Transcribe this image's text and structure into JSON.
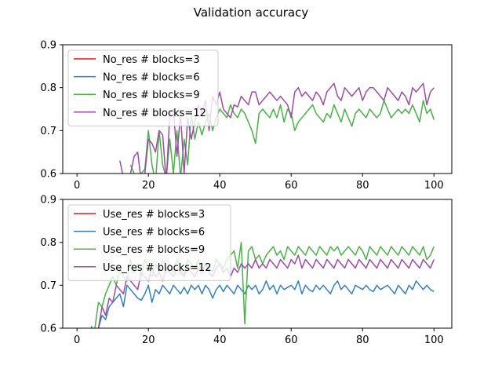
{
  "figure": {
    "title": "Validation accuracy"
  },
  "colors": {
    "red": "#e41a1c",
    "blue": "#377eb8",
    "green": "#4daf4a",
    "purple": "#984ea3"
  },
  "chart_data": [
    {
      "type": "line",
      "title": "",
      "xlabel": "",
      "ylabel": "",
      "xlim": [
        -4,
        105
      ],
      "ylim": [
        0.6,
        0.9
      ],
      "xticks": [
        0,
        20,
        40,
        60,
        80,
        100
      ],
      "yticks": [
        0.6,
        0.7,
        0.8,
        0.9
      ],
      "xtick_labels": [
        "0",
        "20",
        "40",
        "60",
        "80",
        "100"
      ],
      "ytick_labels": [
        "0.6",
        "0.7",
        "0.8",
        "0.9"
      ],
      "grid": false,
      "legend_position": "upper-left",
      "series": [
        {
          "name": "No_res # blocks=3",
          "color": "#e41a1c",
          "x": [],
          "y": []
        },
        {
          "name": "No_res # blocks=6",
          "color": "#377eb8",
          "x": [],
          "y": []
        },
        {
          "name": "No_res # blocks=9",
          "color": "#4daf4a",
          "x": [
            15,
            16,
            17,
            18,
            19,
            20,
            21,
            22,
            23,
            24,
            25,
            26,
            27,
            28,
            29,
            30,
            31,
            32,
            33,
            34,
            35,
            36,
            37,
            38,
            39,
            40,
            41,
            42,
            43,
            44,
            45,
            46,
            47,
            48,
            49,
            50,
            51,
            52,
            53,
            54,
            55,
            56,
            57,
            58,
            59,
            60,
            61,
            62,
            63,
            64,
            65,
            66,
            67,
            68,
            69,
            70,
            71,
            72,
            73,
            74,
            75,
            76,
            77,
            78,
            79,
            80,
            81,
            82,
            83,
            84,
            85,
            86,
            87,
            88,
            89,
            90,
            91,
            92,
            93,
            94,
            95,
            96,
            97,
            98,
            99,
            100
          ],
          "y": [
            0.62,
            0.6,
            0.59,
            0.6,
            0.61,
            0.7,
            0.62,
            0.58,
            0.7,
            0.62,
            0.59,
            0.68,
            0.6,
            0.7,
            0.59,
            0.68,
            0.62,
            0.74,
            0.68,
            0.72,
            0.69,
            0.72,
            0.74,
            0.7,
            0.73,
            0.75,
            0.74,
            0.73,
            0.76,
            0.74,
            0.73,
            0.75,
            0.74,
            0.72,
            0.7,
            0.67,
            0.74,
            0.75,
            0.74,
            0.73,
            0.75,
            0.73,
            0.76,
            0.72,
            0.75,
            0.74,
            0.7,
            0.72,
            0.73,
            0.74,
            0.75,
            0.76,
            0.74,
            0.73,
            0.72,
            0.74,
            0.73,
            0.76,
            0.74,
            0.72,
            0.75,
            0.73,
            0.71,
            0.74,
            0.75,
            0.74,
            0.73,
            0.75,
            0.74,
            0.73,
            0.74,
            0.77,
            0.75,
            0.73,
            0.74,
            0.75,
            0.74,
            0.75,
            0.74,
            0.76,
            0.74,
            0.72,
            0.77,
            0.74,
            0.75,
            0.725
          ]
        },
        {
          "name": "No_res # blocks=12",
          "color": "#984ea3",
          "x": [
            12,
            13,
            14,
            15,
            16,
            17,
            18,
            19,
            20,
            21,
            22,
            23,
            24,
            25,
            26,
            27,
            28,
            29,
            30,
            31,
            32,
            33,
            34,
            35,
            36,
            37,
            38,
            39,
            40,
            41,
            42,
            43,
            44,
            45,
            46,
            47,
            48,
            49,
            50,
            51,
            52,
            53,
            54,
            55,
            56,
            57,
            58,
            59,
            60,
            61,
            62,
            63,
            64,
            65,
            66,
            67,
            68,
            69,
            70,
            71,
            72,
            73,
            74,
            75,
            76,
            77,
            78,
            79,
            80,
            81,
            82,
            83,
            84,
            85,
            86,
            87,
            88,
            89,
            90,
            91,
            92,
            93,
            94,
            95,
            96,
            97,
            98,
            99,
            100
          ],
          "y": [
            0.63,
            0.59,
            0.57,
            0.6,
            0.64,
            0.65,
            0.58,
            0.6,
            0.68,
            0.67,
            0.65,
            0.7,
            0.69,
            0.58,
            0.74,
            0.75,
            0.64,
            0.74,
            0.6,
            0.73,
            0.68,
            0.72,
            0.76,
            0.74,
            0.77,
            0.7,
            0.78,
            0.76,
            0.79,
            0.75,
            0.74,
            0.73,
            0.76,
            0.755,
            0.78,
            0.77,
            0.76,
            0.79,
            0.79,
            0.76,
            0.77,
            0.78,
            0.79,
            0.78,
            0.77,
            0.78,
            0.77,
            0.76,
            0.73,
            0.79,
            0.8,
            0.78,
            0.79,
            0.78,
            0.77,
            0.79,
            0.78,
            0.76,
            0.79,
            0.8,
            0.81,
            0.78,
            0.77,
            0.8,
            0.79,
            0.78,
            0.79,
            0.8,
            0.77,
            0.79,
            0.8,
            0.8,
            0.79,
            0.78,
            0.77,
            0.8,
            0.79,
            0.78,
            0.77,
            0.79,
            0.78,
            0.76,
            0.8,
            0.79,
            0.8,
            0.81,
            0.76,
            0.79,
            0.8
          ]
        }
      ]
    },
    {
      "type": "line",
      "title": "",
      "xlabel": "",
      "ylabel": "",
      "xlim": [
        -4,
        105
      ],
      "ylim": [
        0.6,
        0.9
      ],
      "xticks": [
        0,
        20,
        40,
        60,
        80,
        100
      ],
      "yticks": [
        0.6,
        0.7,
        0.8,
        0.9
      ],
      "xtick_labels": [
        "0",
        "20",
        "40",
        "60",
        "80",
        "100"
      ],
      "ytick_labels": [
        "0.6",
        "0.7",
        "0.8",
        "0.9"
      ],
      "grid": false,
      "legend_position": "upper-left",
      "series": [
        {
          "name": "Use_res # blocks=3",
          "color": "#e41a1c",
          "x": [],
          "y": []
        },
        {
          "name": "Use_res # blocks=6",
          "color": "#377eb8",
          "x": [
            4,
            5,
            6,
            7,
            8,
            9,
            10,
            11,
            12,
            13,
            14,
            15,
            16,
            17,
            18,
            19,
            20,
            21,
            22,
            23,
            24,
            25,
            26,
            27,
            28,
            29,
            30,
            31,
            32,
            33,
            34,
            35,
            36,
            37,
            38,
            39,
            40,
            41,
            42,
            43,
            44,
            45,
            46,
            47,
            48,
            49,
            50,
            51,
            52,
            53,
            54,
            55,
            56,
            57,
            58,
            59,
            60,
            61,
            62,
            63,
            64,
            65,
            66,
            67,
            68,
            69,
            70,
            71,
            72,
            73,
            74,
            75,
            76,
            77,
            78,
            79,
            80,
            81,
            82,
            83,
            84,
            85,
            86,
            87,
            88,
            89,
            90,
            91,
            92,
            93,
            94,
            95,
            96,
            97,
            98,
            99,
            100
          ],
          "y": [
            0.605,
            0.58,
            0.6,
            0.63,
            0.62,
            0.65,
            0.66,
            0.67,
            0.68,
            0.65,
            0.7,
            0.69,
            0.68,
            0.67,
            0.665,
            0.68,
            0.7,
            0.66,
            0.69,
            0.68,
            0.7,
            0.69,
            0.68,
            0.7,
            0.69,
            0.68,
            0.695,
            0.68,
            0.7,
            0.69,
            0.7,
            0.68,
            0.7,
            0.69,
            0.67,
            0.69,
            0.7,
            0.685,
            0.7,
            0.69,
            0.68,
            0.7,
            0.69,
            0.68,
            0.7,
            0.69,
            0.7,
            0.68,
            0.69,
            0.71,
            0.69,
            0.7,
            0.68,
            0.7,
            0.69,
            0.695,
            0.7,
            0.69,
            0.71,
            0.68,
            0.7,
            0.69,
            0.685,
            0.7,
            0.69,
            0.7,
            0.69,
            0.68,
            0.7,
            0.71,
            0.69,
            0.7,
            0.69,
            0.68,
            0.7,
            0.695,
            0.69,
            0.7,
            0.69,
            0.685,
            0.7,
            0.69,
            0.695,
            0.7,
            0.69,
            0.68,
            0.7,
            0.69,
            0.68,
            0.7,
            0.69,
            0.71,
            0.7,
            0.69,
            0.7,
            0.69,
            0.685
          ]
        },
        {
          "name": "Use_res # blocks=9",
          "color": "#4daf4a",
          "x": [
            5,
            6,
            7,
            8,
            9,
            10,
            11,
            12,
            13,
            14,
            15,
            16,
            17,
            18,
            19,
            20,
            21,
            22,
            23,
            24,
            25,
            26,
            27,
            28,
            29,
            30,
            31,
            32,
            33,
            34,
            35,
            36,
            37,
            38,
            39,
            40,
            41,
            42,
            43,
            44,
            45,
            46,
            47,
            48,
            49,
            50,
            51,
            52,
            53,
            54,
            55,
            56,
            57,
            58,
            59,
            60,
            61,
            62,
            63,
            64,
            65,
            66,
            67,
            68,
            69,
            70,
            71,
            72,
            73,
            74,
            75,
            76,
            77,
            78,
            79,
            80,
            81,
            82,
            83,
            84,
            85,
            86,
            87,
            88,
            89,
            90,
            91,
            92,
            93,
            94,
            95,
            96,
            97,
            98,
            99,
            100
          ],
          "y": [
            0.6,
            0.66,
            0.65,
            0.68,
            0.7,
            0.72,
            0.7,
            0.74,
            0.72,
            0.71,
            0.76,
            0.73,
            0.75,
            0.72,
            0.76,
            0.74,
            0.72,
            0.75,
            0.73,
            0.76,
            0.74,
            0.75,
            0.73,
            0.76,
            0.74,
            0.72,
            0.76,
            0.75,
            0.74,
            0.76,
            0.73,
            0.75,
            0.74,
            0.73,
            0.76,
            0.75,
            0.74,
            0.76,
            0.77,
            0.78,
            0.74,
            0.8,
            0.61,
            0.78,
            0.79,
            0.76,
            0.77,
            0.75,
            0.77,
            0.78,
            0.79,
            0.77,
            0.78,
            0.76,
            0.79,
            0.78,
            0.77,
            0.79,
            0.78,
            0.77,
            0.79,
            0.78,
            0.77,
            0.79,
            0.78,
            0.77,
            0.79,
            0.78,
            0.79,
            0.77,
            0.78,
            0.79,
            0.78,
            0.77,
            0.79,
            0.78,
            0.76,
            0.79,
            0.78,
            0.77,
            0.79,
            0.78,
            0.77,
            0.79,
            0.78,
            0.77,
            0.79,
            0.78,
            0.77,
            0.79,
            0.78,
            0.77,
            0.79,
            0.76,
            0.77,
            0.79
          ]
        },
        {
          "name": "Use_res # blocks=12",
          "color": "#984ea3",
          "x": [
            6,
            7,
            8,
            9,
            10,
            11,
            12,
            13,
            14,
            15,
            16,
            17,
            18,
            19,
            20,
            21,
            22,
            23,
            24,
            25,
            26,
            27,
            28,
            29,
            30,
            31,
            32,
            33,
            34,
            35,
            36,
            37,
            38,
            39,
            40,
            41,
            42,
            43,
            44,
            45,
            46,
            47,
            48,
            49,
            50,
            51,
            52,
            53,
            54,
            55,
            56,
            57,
            58,
            59,
            60,
            61,
            62,
            63,
            64,
            65,
            66,
            67,
            68,
            69,
            70,
            71,
            72,
            73,
            74,
            75,
            76,
            77,
            78,
            79,
            80,
            81,
            82,
            83,
            84,
            85,
            86,
            87,
            88,
            89,
            90,
            91,
            92,
            93,
            94,
            95,
            96,
            97,
            98,
            99,
            100
          ],
          "y": [
            0.6,
            0.65,
            0.63,
            0.67,
            0.66,
            0.7,
            0.69,
            0.68,
            0.72,
            0.71,
            0.7,
            0.69,
            0.73,
            0.72,
            0.71,
            0.74,
            0.72,
            0.73,
            0.71,
            0.74,
            0.73,
            0.72,
            0.74,
            0.73,
            0.72,
            0.74,
            0.73,
            0.72,
            0.74,
            0.73,
            0.75,
            0.73,
            0.72,
            0.74,
            0.75,
            0.73,
            0.74,
            0.72,
            0.74,
            0.73,
            0.75,
            0.74,
            0.75,
            0.74,
            0.76,
            0.74,
            0.75,
            0.74,
            0.76,
            0.75,
            0.74,
            0.76,
            0.75,
            0.74,
            0.76,
            0.75,
            0.77,
            0.74,
            0.76,
            0.75,
            0.74,
            0.76,
            0.75,
            0.74,
            0.76,
            0.75,
            0.74,
            0.76,
            0.75,
            0.74,
            0.76,
            0.75,
            0.74,
            0.76,
            0.75,
            0.74,
            0.76,
            0.75,
            0.74,
            0.76,
            0.75,
            0.74,
            0.76,
            0.75,
            0.74,
            0.76,
            0.75,
            0.74,
            0.76,
            0.75,
            0.74,
            0.76,
            0.75,
            0.74,
            0.76
          ]
        }
      ]
    }
  ]
}
